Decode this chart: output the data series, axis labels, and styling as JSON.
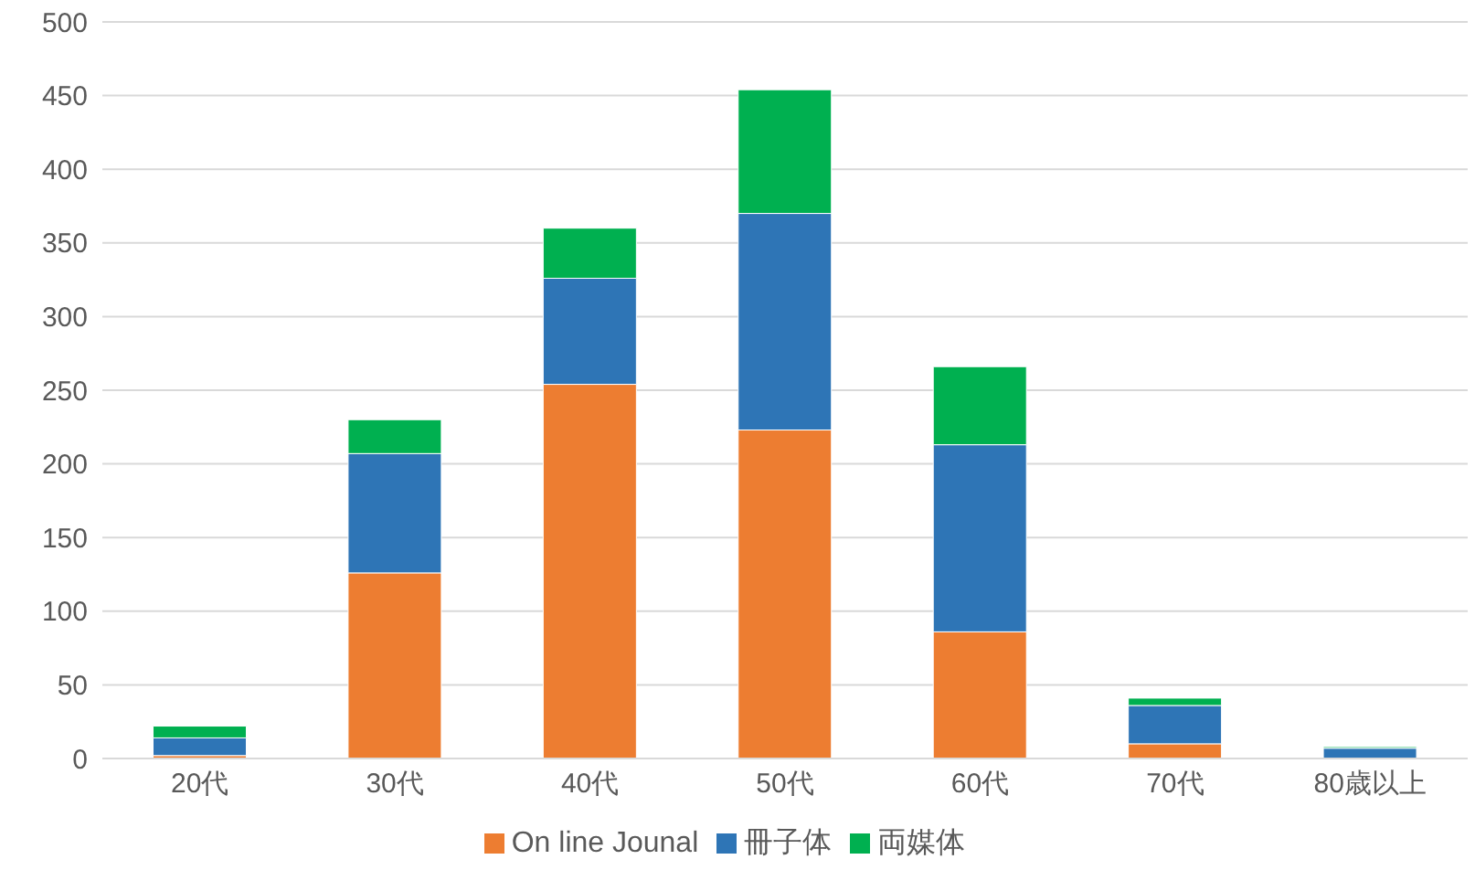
{
  "chart_data": {
    "type": "bar",
    "stacked": true,
    "categories": [
      "20代",
      "30代",
      "40代",
      "50代",
      "60代",
      "70代",
      "80歳以上"
    ],
    "series": [
      {
        "name": "On line Jounal",
        "color": "#ed7d31",
        "values": [
          2,
          126,
          254,
          223,
          86,
          10,
          null
        ]
      },
      {
        "name": "冊子体",
        "color": "#2e75b6",
        "values": [
          12,
          81,
          72,
          147,
          127,
          26,
          7
        ]
      },
      {
        "name": "両媒体",
        "color": "#00b050",
        "values": [
          8,
          23,
          34,
          84,
          53,
          5,
          1
        ]
      }
    ],
    "ylim": [
      0,
      500
    ],
    "yticks": [
      0,
      50,
      100,
      150,
      200,
      250,
      300,
      350,
      400,
      450,
      500
    ],
    "grid": "y",
    "legend": "bottom"
  }
}
